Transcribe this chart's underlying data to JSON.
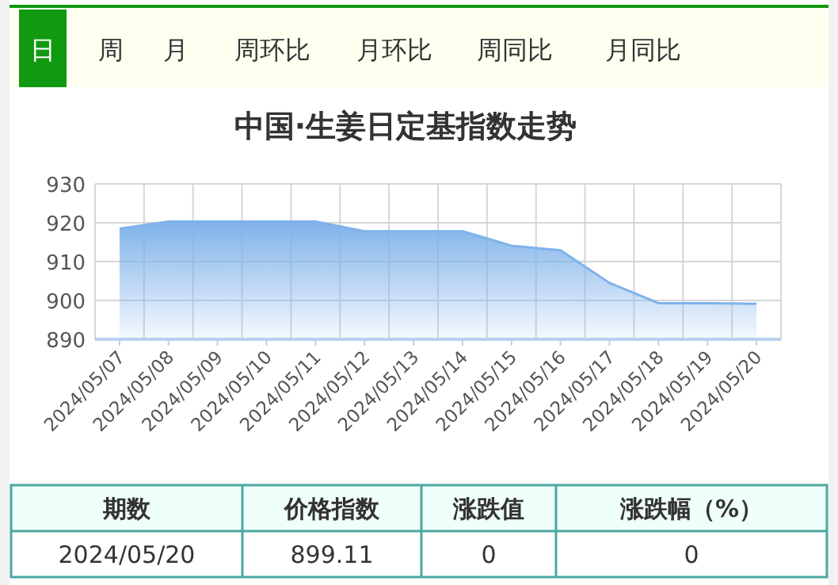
{
  "chart_data": {
    "type": "area",
    "title": "中国·生姜日定基指数走势",
    "categories": [
      "2024/05/07",
      "2024/05/08",
      "2024/05/09",
      "2024/05/10",
      "2024/05/11",
      "2024/05/12",
      "2024/05/13",
      "2024/05/14",
      "2024/05/15",
      "2024/05/16",
      "2024/05/17",
      "2024/05/18",
      "2024/05/19",
      "2024/05/20"
    ],
    "values": [
      918.5,
      920.3,
      920.3,
      920.3,
      920.3,
      917.8,
      917.8,
      917.8,
      914.1,
      912.9,
      904.5,
      899.3,
      899.3,
      899.11
    ],
    "color": "#7fb2ea",
    "ylim": [
      890,
      930
    ],
    "yticks": [
      890,
      900,
      910,
      920,
      930
    ],
    "grid": true,
    "annotations": [
      "日",
      "周",
      "月",
      "周环比",
      "月环比",
      "周同比",
      "月同比",
      "期数",
      "价格指数",
      "涨跌值",
      "涨跌幅（%）",
      "2024/05/20",
      "899.11",
      "0",
      "0"
    ]
  }
}
